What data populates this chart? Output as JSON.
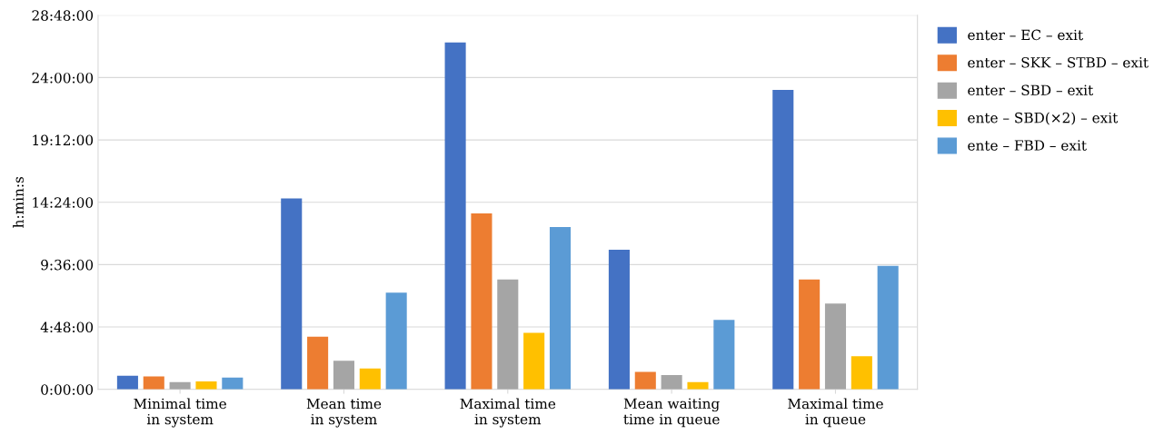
{
  "chart_data": {
    "type": "bar",
    "ylabel": "h:min:s",
    "categories": [
      "Minimal time\nin system",
      "Mean time\nin system",
      "Maximal time\nin system",
      "Mean waiting\ntime in queue",
      "Maximal time\nin queue"
    ],
    "series": [
      {
        "name": "enter – EC – exit",
        "color": "#4472c4",
        "values": [
          1.05,
          14.7,
          26.7,
          10.75,
          23.05
        ]
      },
      {
        "name": "enter – SKK – STBD – exit",
        "color": "#ed7d31",
        "values": [
          1.0,
          4.05,
          13.55,
          1.35,
          8.45
        ]
      },
      {
        "name": "enter – SBD – exit",
        "color": "#a5a5a5",
        "values": [
          0.55,
          2.2,
          8.45,
          1.1,
          6.6
        ]
      },
      {
        "name": "ente – SBD(×2) – exit",
        "color": "#ffc000",
        "values": [
          0.6,
          1.6,
          4.35,
          0.55,
          2.55
        ]
      },
      {
        "name": "ente – FBD – exit",
        "color": "#5b9bd5",
        "values": [
          0.9,
          7.45,
          12.5,
          5.35,
          9.5
        ]
      }
    ],
    "ylim": [
      0,
      28.8
    ],
    "yticks": [
      {
        "value": 0,
        "label": "0:00:00"
      },
      {
        "value": 4.8,
        "label": "4:48:00"
      },
      {
        "value": 9.6,
        "label": "9:36:00"
      },
      {
        "value": 14.4,
        "label": "14:24:00"
      },
      {
        "value": 19.2,
        "label": "19:12:00"
      },
      {
        "value": 24,
        "label": "24:00:00"
      },
      {
        "value": 28.8,
        "label": "28:48:00"
      }
    ],
    "grid": "y",
    "legend": "right"
  }
}
